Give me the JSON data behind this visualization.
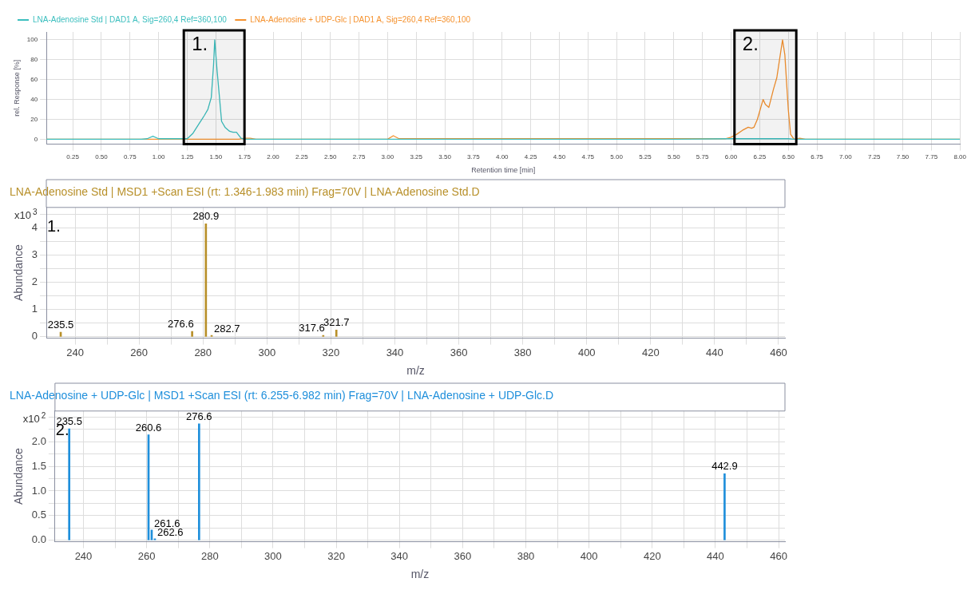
{
  "chart_data": [
    {
      "type": "line",
      "xlabel": "Retention time [min]",
      "ylabel": "rel. Response [%]",
      "legend": "top",
      "grid": true,
      "xlim": [
        0.02,
        8.0
      ],
      "ylim": [
        -5,
        108
      ],
      "xticks": [
        {
          "value": 0.25,
          "label": "0.25"
        },
        {
          "value": 0.5,
          "label": "0.50"
        },
        {
          "value": 0.75,
          "label": "0.75"
        },
        {
          "value": 1,
          "label": "1.00"
        },
        {
          "value": 1.25,
          "label": "1.25"
        },
        {
          "value": 1.5,
          "label": "1.50"
        },
        {
          "value": 1.75,
          "label": "1.75"
        },
        {
          "value": 2,
          "label": "2.00"
        },
        {
          "value": 2.25,
          "label": "2.25"
        },
        {
          "value": 2.5,
          "label": "2.50"
        },
        {
          "value": 2.75,
          "label": "2.75"
        },
        {
          "value": 3,
          "label": "3.00"
        },
        {
          "value": 3.25,
          "label": "3.25"
        },
        {
          "value": 3.5,
          "label": "3.50"
        },
        {
          "value": 3.75,
          "label": "3.75"
        },
        {
          "value": 4,
          "label": "4.00"
        },
        {
          "value": 4.25,
          "label": "4.25"
        },
        {
          "value": 4.5,
          "label": "4.50"
        },
        {
          "value": 4.75,
          "label": "4.75"
        },
        {
          "value": 5,
          "label": "5.00"
        },
        {
          "value": 5.25,
          "label": "5.25"
        },
        {
          "value": 5.5,
          "label": "5.50"
        },
        {
          "value": 5.75,
          "label": "5.75"
        },
        {
          "value": 6,
          "label": "6.00"
        },
        {
          "value": 6.25,
          "label": "6.25"
        },
        {
          "value": 6.5,
          "label": "6.50"
        },
        {
          "value": 6.75,
          "label": "6.75"
        },
        {
          "value": 7,
          "label": "7.00"
        },
        {
          "value": 7.25,
          "label": "7.25"
        },
        {
          "value": 7.5,
          "label": "7.50"
        },
        {
          "value": 7.75,
          "label": "7.75"
        },
        {
          "value": 8,
          "label": "8.00"
        }
      ],
      "yticks": [
        0,
        20,
        40,
        60,
        80,
        100
      ],
      "bands": [
        {
          "axis": "x",
          "from": 1.22,
          "to": 1.75,
          "label": "1.",
          "color": "#000000"
        },
        {
          "axis": "x",
          "from": 6.03,
          "to": 6.57,
          "label": "2.",
          "color": "#000000"
        }
      ],
      "series": [
        {
          "name": "LNA-Adenosine Std | DAD1 A, Sig=260,4 Ref=360,100",
          "color": "#3cbfbf",
          "x": [
            0.02,
            0.85,
            0.9,
            0.95,
            1.0,
            1.25,
            1.3,
            1.35,
            1.4,
            1.43,
            1.46,
            1.48,
            1.49,
            1.51,
            1.55,
            1.58,
            1.62,
            1.65,
            1.68,
            1.72,
            1.75,
            2.0,
            5.5,
            6.0,
            6.5,
            6.55,
            8.0
          ],
          "values": [
            0,
            0,
            0.5,
            3,
            0.5,
            0.5,
            6,
            15,
            24,
            30,
            42,
            75,
            100,
            70,
            18,
            12,
            8,
            7,
            7,
            1,
            0,
            0,
            0,
            0.5,
            0.5,
            0,
            0
          ]
        },
        {
          "name": "LNA-Adenosine + UDP-Glc | DAD1 A, Sig=260,4 Ref=360,100",
          "color": "#f5922f",
          "x": [
            0.02,
            1.7,
            1.75,
            1.8,
            1.85,
            3.0,
            3.05,
            3.1,
            5.95,
            6.0,
            6.05,
            6.1,
            6.15,
            6.18,
            6.2,
            6.23,
            6.28,
            6.3,
            6.33,
            6.37,
            6.4,
            6.43,
            6.45,
            6.47,
            6.5,
            6.52,
            6.55,
            6.6,
            6.65,
            8.0
          ],
          "values": [
            0,
            0,
            1,
            1,
            0,
            0,
            3.5,
            0.5,
            0.5,
            2,
            5,
            9,
            12,
            11,
            12,
            20,
            40,
            35,
            32,
            50,
            62,
            85,
            100,
            85,
            30,
            5,
            0,
            1,
            0,
            0
          ]
        }
      ]
    },
    {
      "type": "bar",
      "title": "LNA-Adenosine Std | MSD1 +Scan ESI (rt: 1.346-1.983 min) Frag=70V | LNA-Adenosine Std.D",
      "xlabel": "m/z",
      "ylabel": "Abundance",
      "grid": true,
      "annotations": [
        "x10$^{3}$",
        "1.",
        {
          "text": "235.5",
          "x": 235.5,
          "y": 0.17
        },
        {
          "text": "276.6",
          "x": 276.6,
          "y": 0.2
        },
        {
          "text": "280.9",
          "x": 280.9,
          "y": 4.15
        },
        {
          "text": "282.7",
          "x": 282.7,
          "y": 0.05
        },
        {
          "text": "317.6",
          "x": 317.6,
          "y": 0.05
        },
        {
          "text": "321.7",
          "x": 321.7,
          "y": 0.25
        }
      ],
      "xlim": [
        231,
        462
      ],
      "ylim": [
        -0.05,
        4.75
      ],
      "xticks": [
        240,
        {
          "value": 250,
          "label": null
        },
        260,
        {
          "value": 270,
          "label": null
        },
        280,
        {
          "value": 290,
          "label": null
        },
        300,
        {
          "value": 310,
          "label": null
        },
        320,
        {
          "value": 330,
          "label": null
        },
        340,
        {
          "value": 350,
          "label": null
        },
        360,
        {
          "value": 370,
          "label": null
        },
        380,
        {
          "value": 390,
          "label": null
        },
        400,
        {
          "value": 410,
          "label": null
        },
        420,
        {
          "value": 430,
          "label": null
        },
        440,
        {
          "value": 450,
          "label": null
        },
        460
      ],
      "yticks": [
        0,
        {
          "value": 0.5,
          "label": null
        },
        1,
        {
          "value": 1.5,
          "label": null
        },
        2,
        {
          "value": 2.5,
          "label": null
        },
        3,
        {
          "value": 3.5,
          "label": null
        },
        4,
        {
          "value": 4.5,
          "label": null
        }
      ],
      "series": [
        {
          "color": "#b8902a",
          "x": [
            235.5,
            276.6,
            280.9,
            282.7,
            317.6,
            321.7
          ],
          "values": [
            0.17,
            0.2,
            4.15,
            0.05,
            0.05,
            0.25
          ]
        }
      ]
    },
    {
      "type": "bar",
      "title": "LNA-Adenosine + UDP-Glc | MSD1 +Scan ESI (rt: 6.255-6.982 min) Frag=70V | LNA-Adenosine + UDP-Glc.D",
      "xlabel": "m/z",
      "ylabel": "Abundance",
      "grid": true,
      "annotations": [
        "x10$^{2}$",
        "2.",
        {
          "text": "235.5",
          "x": 235.5,
          "y": 2.26
        },
        {
          "text": "260.6",
          "x": 260.6,
          "y": 2.14
        },
        {
          "text": "261.6",
          "x": 261.6,
          "y": 0.21
        },
        {
          "text": "262.6",
          "x": 262.6,
          "y": 0.03
        },
        {
          "text": "276.6",
          "x": 276.6,
          "y": 2.36
        },
        {
          "text": "442.9",
          "x": 442.9,
          "y": 1.35
        }
      ],
      "xlim": [
        231,
        462
      ],
      "ylim": [
        -0.03,
        2.62
      ],
      "xticks": [
        240,
        {
          "value": 250,
          "label": null
        },
        260,
        {
          "value": 270,
          "label": null
        },
        280,
        {
          "value": 290,
          "label": null
        },
        300,
        {
          "value": 310,
          "label": null
        },
        320,
        {
          "value": 330,
          "label": null
        },
        340,
        {
          "value": 350,
          "label": null
        },
        360,
        {
          "value": 370,
          "label": null
        },
        380,
        {
          "value": 390,
          "label": null
        },
        400,
        {
          "value": 410,
          "label": null
        },
        420,
        {
          "value": 430,
          "label": null
        },
        440,
        {
          "value": 450,
          "label": null
        },
        460
      ],
      "yticks": [
        {
          "value": 0,
          "label": "0.0"
        },
        {
          "value": 0.25,
          "label": null
        },
        {
          "value": 0.5,
          "label": "0.5"
        },
        {
          "value": 0.75,
          "label": null
        },
        {
          "value": 1,
          "label": "1.0"
        },
        {
          "value": 1.25,
          "label": null
        },
        {
          "value": 1.5,
          "label": "1.5"
        },
        {
          "value": 1.75,
          "label": null
        },
        {
          "value": 2,
          "label": "2.0"
        },
        {
          "value": 2.25,
          "label": null
        },
        {
          "value": 2.5,
          "label": null
        }
      ],
      "series": [
        {
          "color": "#1f8fdb",
          "x": [
            235.5,
            260.6,
            261.6,
            262.6,
            276.6,
            442.9
          ],
          "values": [
            2.26,
            2.14,
            0.21,
            0.03,
            2.36,
            1.35
          ]
        }
      ]
    }
  ]
}
